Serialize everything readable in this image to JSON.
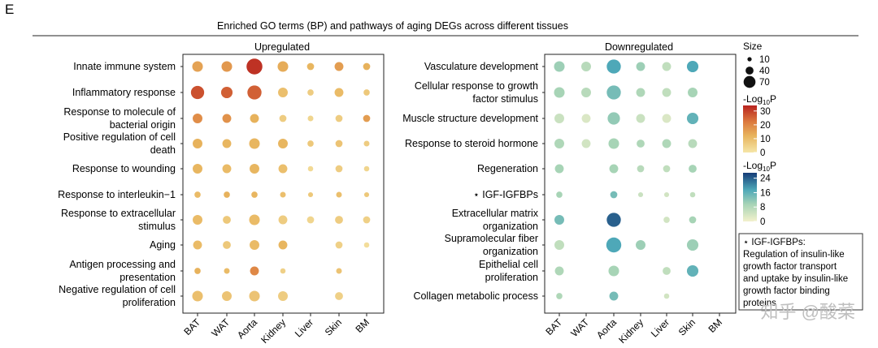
{
  "figure": {
    "panel_letter": "E",
    "title": "Enriched GO terms (BP) and pathways of aging DEGs across different tissues",
    "watermark": "知乎 @酸菜"
  },
  "chart_data": [
    {
      "type": "bubble",
      "subtitle": "Upregulated",
      "colorscale": [
        "#f5e6a8",
        "#e8b55e",
        "#dc7a3e",
        "#b8221f"
      ],
      "columns": [
        "BAT",
        "WAT",
        "Aorta",
        "Kidney",
        "Liver",
        "Skin",
        "BM"
      ],
      "rows": [
        {
          "label": "Innate immune system",
          "points": [
            {
              "col": "BAT",
              "size": 40,
              "p": 15
            },
            {
              "col": "WAT",
              "size": 40,
              "p": 17
            },
            {
              "col": "Aorta",
              "size": 70,
              "p": 32
            },
            {
              "col": "Kidney",
              "size": 40,
              "p": 13
            },
            {
              "col": "Liver",
              "size": 20,
              "p": 11
            },
            {
              "col": "Skin",
              "size": 30,
              "p": 16
            },
            {
              "col": "BM",
              "size": 20,
              "p": 12
            }
          ]
        },
        {
          "label": "Inflammatory response",
          "points": [
            {
              "col": "BAT",
              "size": 55,
              "p": 28
            },
            {
              "col": "WAT",
              "size": 45,
              "p": 26
            },
            {
              "col": "Aorta",
              "size": 60,
              "p": 26
            },
            {
              "col": "Kidney",
              "size": 35,
              "p": 9
            },
            {
              "col": "Liver",
              "size": 15,
              "p": 6
            },
            {
              "col": "Skin",
              "size": 30,
              "p": 10
            },
            {
              "col": "BM",
              "size": 15,
              "p": 7
            }
          ]
        },
        {
          "label": "Response to molecule of bacterial origin",
          "points": [
            {
              "col": "BAT",
              "size": 35,
              "p": 19
            },
            {
              "col": "WAT",
              "size": 30,
              "p": 18
            },
            {
              "col": "Aorta",
              "size": 30,
              "p": 12
            },
            {
              "col": "Kidney",
              "size": 20,
              "p": 6
            },
            {
              "col": "Liver",
              "size": 12,
              "p": 4
            },
            {
              "col": "Skin",
              "size": 20,
              "p": 6
            },
            {
              "col": "BM",
              "size": 20,
              "p": 16
            }
          ]
        },
        {
          "label": "Positive regulation of cell death",
          "points": [
            {
              "col": "BAT",
              "size": 35,
              "p": 12
            },
            {
              "col": "WAT",
              "size": 30,
              "p": 11
            },
            {
              "col": "Aorta",
              "size": 40,
              "p": 11
            },
            {
              "col": "Kidney",
              "size": 35,
              "p": 11
            },
            {
              "col": "Liver",
              "size": 15,
              "p": 7
            },
            {
              "col": "Skin",
              "size": 20,
              "p": 8
            },
            {
              "col": "BM",
              "size": 12,
              "p": 6
            }
          ]
        },
        {
          "label": "Response to wounding",
          "points": [
            {
              "col": "BAT",
              "size": 35,
              "p": 11
            },
            {
              "col": "WAT",
              "size": 30,
              "p": 10
            },
            {
              "col": "Aorta",
              "size": 35,
              "p": 11
            },
            {
              "col": "Kidney",
              "size": 30,
              "p": 9
            },
            {
              "col": "Liver",
              "size": 10,
              "p": 3
            },
            {
              "col": "Skin",
              "size": 20,
              "p": 6
            },
            {
              "col": "BM",
              "size": 10,
              "p": 4
            }
          ]
        },
        {
          "label": "Response to interleukin−1",
          "points": [
            {
              "col": "BAT",
              "size": 15,
              "p": 10
            },
            {
              "col": "WAT",
              "size": 15,
              "p": 12
            },
            {
              "col": "Aorta",
              "size": 15,
              "p": 11
            },
            {
              "col": "Kidney",
              "size": 12,
              "p": 9
            },
            {
              "col": "Liver",
              "size": 8,
              "p": 7
            },
            {
              "col": "Skin",
              "size": 12,
              "p": 9
            },
            {
              "col": "BM",
              "size": 8,
              "p": 7
            }
          ]
        },
        {
          "label": "Response to extracellular stimulus",
          "points": [
            {
              "col": "BAT",
              "size": 35,
              "p": 10
            },
            {
              "col": "WAT",
              "size": 25,
              "p": 7
            },
            {
              "col": "Aorta",
              "size": 40,
              "p": 10
            },
            {
              "col": "Kidney",
              "size": 30,
              "p": 6
            },
            {
              "col": "Liver",
              "size": 20,
              "p": 4
            },
            {
              "col": "Skin",
              "size": 25,
              "p": 6
            },
            {
              "col": "BM",
              "size": 20,
              "p": 5
            }
          ]
        },
        {
          "label": "Aging",
          "points": [
            {
              "col": "BAT",
              "size": 30,
              "p": 10
            },
            {
              "col": "WAT",
              "size": 25,
              "p": 7
            },
            {
              "col": "Aorta",
              "size": 35,
              "p": 10
            },
            {
              "col": "Kidney",
              "size": 30,
              "p": 11
            },
            {
              "col": "Skin",
              "size": 20,
              "p": 5
            },
            {
              "col": "BM",
              "size": 10,
              "p": 2
            }
          ]
        },
        {
          "label": "Antigen processing and presentation",
          "points": [
            {
              "col": "BAT",
              "size": 15,
              "p": 12
            },
            {
              "col": "WAT",
              "size": 12,
              "p": 10
            },
            {
              "col": "Aorta",
              "size": 30,
              "p": 20
            },
            {
              "col": "Kidney",
              "size": 10,
              "p": 5
            },
            {
              "col": "Skin",
              "size": 12,
              "p": 8
            }
          ]
        },
        {
          "label": "Negative regulation of cell proliferation",
          "points": [
            {
              "col": "BAT",
              "size": 40,
              "p": 9
            },
            {
              "col": "WAT",
              "size": 35,
              "p": 8
            },
            {
              "col": "Aorta",
              "size": 40,
              "p": 8
            },
            {
              "col": "Kidney",
              "size": 35,
              "p": 6
            },
            {
              "col": "Skin",
              "size": 25,
              "p": 5
            }
          ]
        }
      ]
    },
    {
      "type": "bubble",
      "subtitle": "Downregulated",
      "colorscale": [
        "#f3f1cc",
        "#a7d4b6",
        "#4ea8b8",
        "#163c78"
      ],
      "columns": [
        "BAT",
        "WAT",
        "Aorta",
        "Kidney",
        "Liver",
        "Skin",
        "BM"
      ],
      "rows": [
        {
          "label": "Vasculature development",
          "points": [
            {
              "col": "BAT",
              "size": 40,
              "p": 10
            },
            {
              "col": "WAT",
              "size": 35,
              "p": 7
            },
            {
              "col": "Aorta",
              "size": 60,
              "p": 18
            },
            {
              "col": "Kidney",
              "size": 30,
              "p": 10
            },
            {
              "col": "Liver",
              "size": 30,
              "p": 6
            },
            {
              "col": "Skin",
              "size": 45,
              "p": 18
            }
          ]
        },
        {
          "label": "Cellular response to growth factor stimulus",
          "points": [
            {
              "col": "BAT",
              "size": 40,
              "p": 9
            },
            {
              "col": "WAT",
              "size": 35,
              "p": 7
            },
            {
              "col": "Aorta",
              "size": 60,
              "p": 14
            },
            {
              "col": "Kidney",
              "size": 30,
              "p": 8
            },
            {
              "col": "Liver",
              "size": 30,
              "p": 6
            },
            {
              "col": "Skin",
              "size": 35,
              "p": 9
            }
          ]
        },
        {
          "label": "Muscle structure development",
          "points": [
            {
              "col": "BAT",
              "size": 35,
              "p": 5
            },
            {
              "col": "WAT",
              "size": 30,
              "p": 3
            },
            {
              "col": "Aorta",
              "size": 50,
              "p": 11
            },
            {
              "col": "Kidney",
              "size": 30,
              "p": 5
            },
            {
              "col": "Liver",
              "size": 30,
              "p": 3
            },
            {
              "col": "Skin",
              "size": 45,
              "p": 16
            }
          ]
        },
        {
          "label": "Response to steroid hormone",
          "points": [
            {
              "col": "BAT",
              "size": 35,
              "p": 8
            },
            {
              "col": "WAT",
              "size": 30,
              "p": 4
            },
            {
              "col": "Aorta",
              "size": 40,
              "p": 9
            },
            {
              "col": "Kidney",
              "size": 25,
              "p": 8
            },
            {
              "col": "Liver",
              "size": 30,
              "p": 8
            },
            {
              "col": "Skin",
              "size": 30,
              "p": 7
            }
          ]
        },
        {
          "label": "Regeneration",
          "points": [
            {
              "col": "BAT",
              "size": 30,
              "p": 9
            },
            {
              "col": "Aorta",
              "size": 30,
              "p": 9
            },
            {
              "col": "Kidney",
              "size": 20,
              "p": 7
            },
            {
              "col": "Liver",
              "size": 20,
              "p": 6
            },
            {
              "col": "Skin",
              "size": 25,
              "p": 9
            }
          ]
        },
        {
          "label": "IGF-IGFBPs",
          "marker": "⋆",
          "points": [
            {
              "col": "BAT",
              "size": 15,
              "p": 9
            },
            {
              "col": "Aorta",
              "size": 20,
              "p": 14
            },
            {
              "col": "Kidney",
              "size": 8,
              "p": 5
            },
            {
              "col": "Liver",
              "size": 8,
              "p": 4
            },
            {
              "col": "Skin",
              "size": 10,
              "p": 6
            }
          ]
        },
        {
          "label": "Extracellular matrix organization",
          "points": [
            {
              "col": "BAT",
              "size": 35,
              "p": 14
            },
            {
              "col": "Aorta",
              "size": 60,
              "p": 24
            },
            {
              "col": "Liver",
              "size": 15,
              "p": 4
            },
            {
              "col": "Skin",
              "size": 20,
              "p": 9
            }
          ]
        },
        {
          "label": "Supramolecular fiber organization",
          "points": [
            {
              "col": "BAT",
              "size": 35,
              "p": 6
            },
            {
              "col": "Aorta",
              "size": 65,
              "p": 18
            },
            {
              "col": "Kidney",
              "size": 35,
              "p": 10
            },
            {
              "col": "Skin",
              "size": 45,
              "p": 10
            }
          ]
        },
        {
          "label": "Epithelial cell proliferation",
          "points": [
            {
              "col": "BAT",
              "size": 30,
              "p": 8
            },
            {
              "col": "Aorta",
              "size": 40,
              "p": 9
            },
            {
              "col": "Liver",
              "size": 25,
              "p": 6
            },
            {
              "col": "Skin",
              "size": 45,
              "p": 16
            }
          ]
        },
        {
          "label": "Collagen metabolic process",
          "points": [
            {
              "col": "BAT",
              "size": 15,
              "p": 8
            },
            {
              "col": "Aorta",
              "size": 30,
              "p": 14
            },
            {
              "col": "Liver",
              "size": 10,
              "p": 4
            }
          ]
        }
      ]
    }
  ],
  "legend": {
    "size_title": "Size",
    "size_values": [
      10,
      40,
      70
    ],
    "up_color_title": "-Log",
    "up_color_sub": "10",
    "up_color_suffix": "P",
    "up_ticks": [
      30,
      20,
      10,
      0
    ],
    "up_range": [
      0,
      34
    ],
    "down_color_title": "-Log",
    "down_color_sub": "10",
    "down_color_suffix": "P",
    "down_ticks": [
      24,
      16,
      8,
      0
    ],
    "down_range": [
      0,
      27
    ]
  },
  "note": {
    "lines": [
      "⋆ IGF-IGFBPs:",
      "Regulation of insulin-like",
      "growth factor transport",
      "and uptake by insulin-like",
      "growth factor binding",
      "proteins"
    ]
  }
}
